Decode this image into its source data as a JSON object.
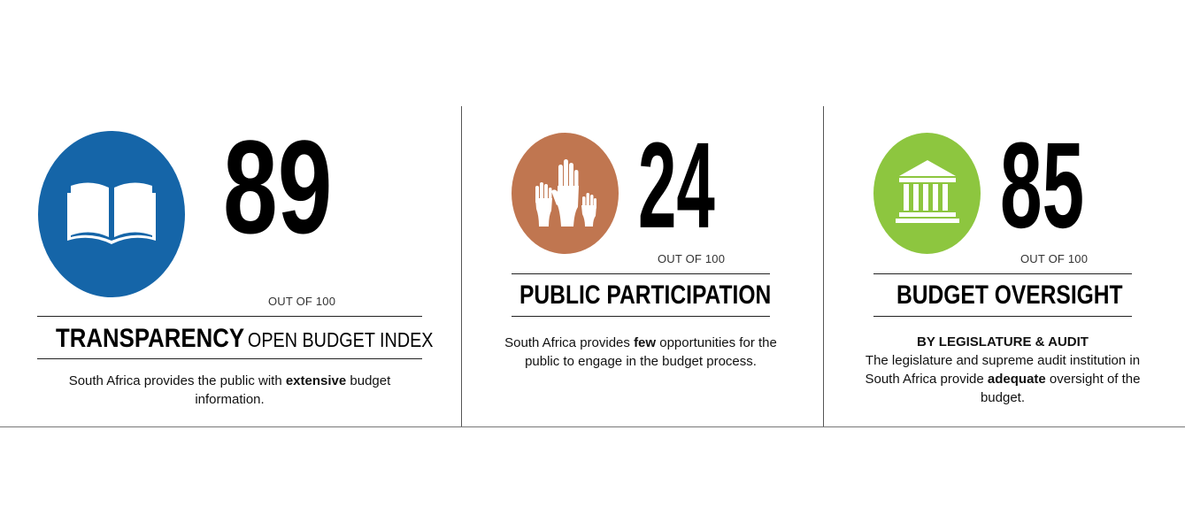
{
  "panels": [
    {
      "score": "89",
      "out_of": "OUT OF 100",
      "title_main": "TRANSPARENCY",
      "title_sub": "OPEN BUDGET INDEX",
      "desc_pre": "South Africa provides the public with ",
      "desc_bold": "extensive",
      "desc_post": " budget information.",
      "icon": "open-book-icon",
      "color": "#1565a8"
    },
    {
      "score": "24",
      "out_of": "OUT OF 100",
      "title_main": "PUBLIC PARTICIPATION",
      "desc_pre": "South Africa provides ",
      "desc_bold": "few",
      "desc_post": " opportunities for the public to engage in the budget process.",
      "icon": "raised-hands-icon",
      "color": "#c07650"
    },
    {
      "score": "85",
      "out_of": "OUT OF 100",
      "title_main": "BUDGET OVERSIGHT",
      "subheading": "BY LEGISLATURE & AUDIT",
      "desc_pre": "The legislature and supreme audit institution in South Africa provide ",
      "desc_bold": "adequate",
      "desc_post": " oversight of the budget.",
      "icon": "government-building-icon",
      "color": "#8dc63f"
    }
  ]
}
